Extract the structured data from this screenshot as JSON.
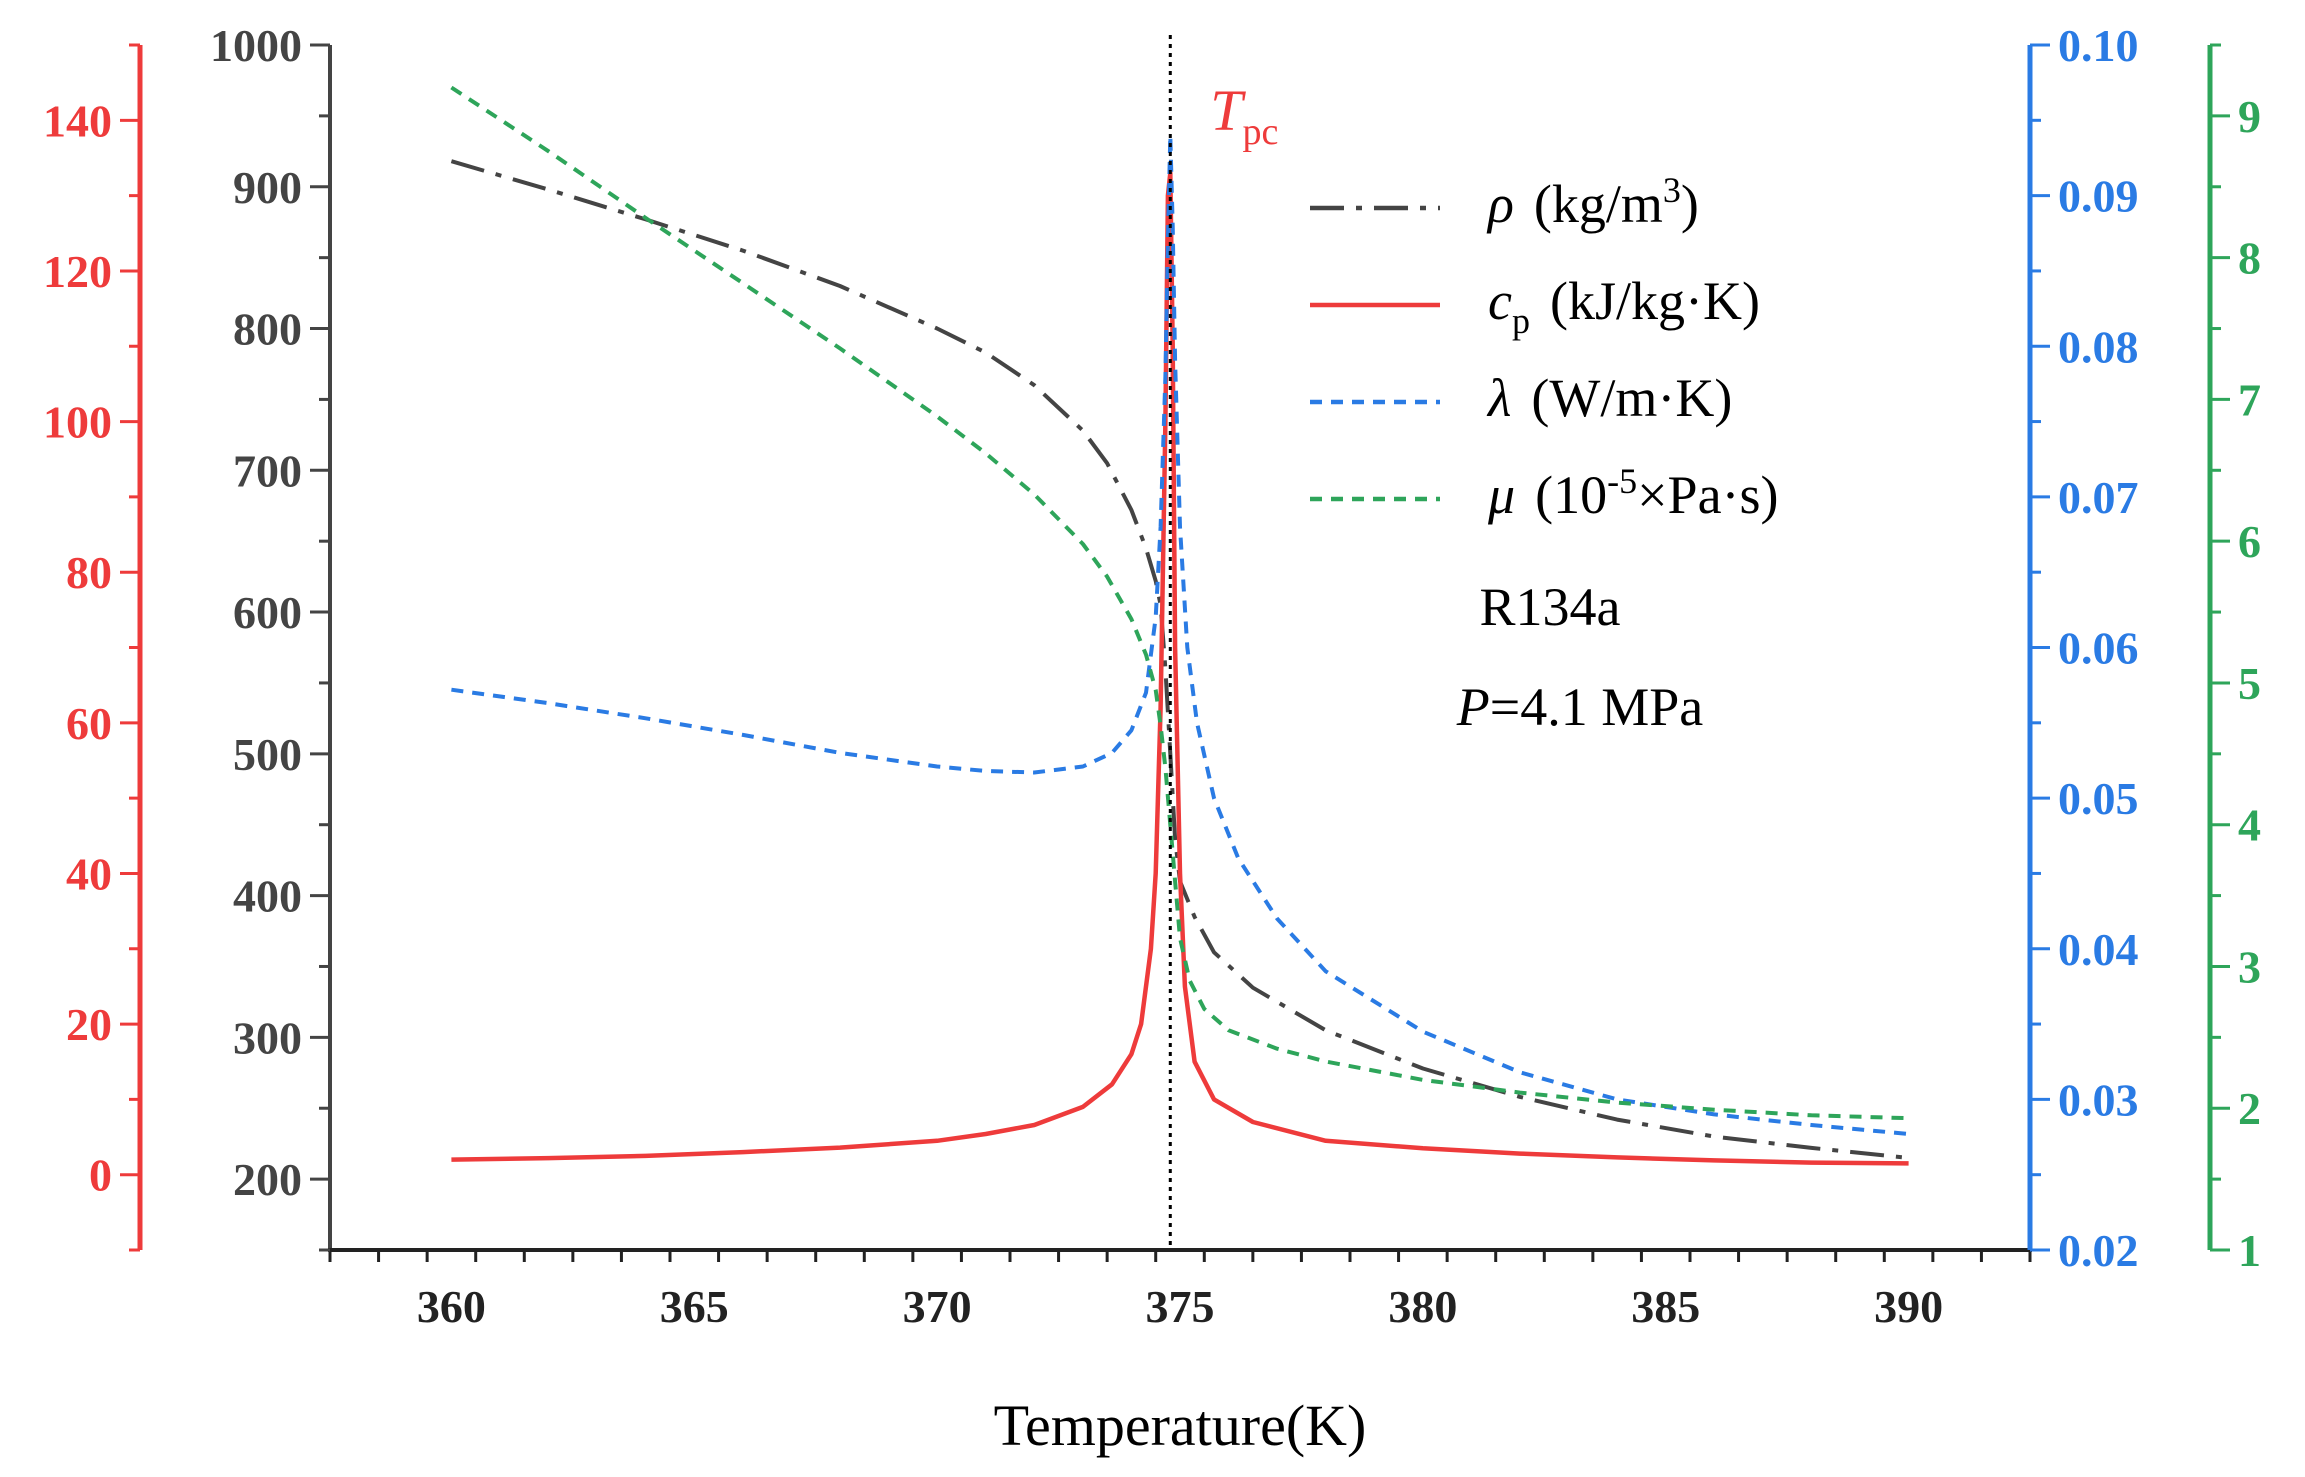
{
  "chart_data": {
    "type": "line",
    "title": "",
    "fluid": "R134a",
    "pressure_label": "=4.1 MPa",
    "pressure_symbol": "P",
    "xlabel": "Temperature(K)",
    "xlim": [
      357.5,
      392.5
    ],
    "xticks": [
      360,
      365,
      370,
      375,
      380,
      385,
      390
    ],
    "tpc": 374.8,
    "tpc_label": {
      "main": "T",
      "sub": "pc"
    },
    "axes": {
      "rho": {
        "ylim": [
          150,
          1000
        ],
        "ticks": [
          200,
          300,
          400,
          500,
          600,
          700,
          800,
          900,
          1000
        ],
        "color": "#444444",
        "decimals": 0
      },
      "cp": {
        "ylim": [
          -10,
          150
        ],
        "ticks": [
          0,
          20,
          40,
          60,
          80,
          100,
          120,
          140
        ],
        "color": "#ee3b3b",
        "decimals": 0
      },
      "lambda": {
        "ylim": [
          0.02,
          0.1
        ],
        "ticks": [
          0.02,
          0.03,
          0.04,
          0.05,
          0.06,
          0.07,
          0.08,
          0.09,
          0.1
        ],
        "color": "#2a7be4",
        "decimals": 2
      },
      "mu": {
        "ylim": [
          1,
          9.5
        ],
        "ticks": [
          1,
          2,
          3,
          4,
          5,
          6,
          7,
          8,
          9
        ],
        "color": "#2ea55a",
        "decimals": 0
      }
    },
    "series": [
      {
        "key": "rho",
        "name": "ρ",
        "unit": "(kg/m3)",
        "color": "#444444",
        "dash": "34,12,6,12",
        "axis": "rho",
        "points": [
          [
            360,
            918
          ],
          [
            362,
            898
          ],
          [
            364,
            877
          ],
          [
            366,
            855
          ],
          [
            368,
            830
          ],
          [
            370,
            800
          ],
          [
            371,
            783
          ],
          [
            372,
            760
          ],
          [
            373,
            728
          ],
          [
            373.5,
            705
          ],
          [
            374,
            672
          ],
          [
            374.3,
            645
          ],
          [
            374.5,
            622
          ],
          [
            374.6,
            605
          ],
          [
            374.7,
            560
          ],
          [
            374.8,
            500
          ],
          [
            374.9,
            440
          ],
          [
            375.0,
            410
          ],
          [
            375.3,
            385
          ],
          [
            375.7,
            360
          ],
          [
            376.5,
            335
          ],
          [
            378,
            305
          ],
          [
            380,
            278
          ],
          [
            382,
            258
          ],
          [
            384,
            242
          ],
          [
            386,
            230
          ],
          [
            388,
            222
          ],
          [
            390,
            215
          ]
        ]
      },
      {
        "key": "cp",
        "name": "c",
        "sub": "p",
        "unit": "(kJ/kg·K)",
        "color": "#ee3b3b",
        "dash": "",
        "axis": "cp",
        "points": [
          [
            360,
            2
          ],
          [
            362,
            2.2
          ],
          [
            364,
            2.5
          ],
          [
            366,
            3
          ],
          [
            368,
            3.6
          ],
          [
            370,
            4.5
          ],
          [
            371,
            5.4
          ],
          [
            372,
            6.6
          ],
          [
            373,
            9
          ],
          [
            373.6,
            12
          ],
          [
            374,
            16
          ],
          [
            374.2,
            20
          ],
          [
            374.4,
            30
          ],
          [
            374.5,
            40
          ],
          [
            374.6,
            62
          ],
          [
            374.7,
            100
          ],
          [
            374.75,
            130
          ],
          [
            374.8,
            133
          ],
          [
            374.85,
            110
          ],
          [
            374.9,
            70
          ],
          [
            375.0,
            40
          ],
          [
            375.1,
            25
          ],
          [
            375.3,
            15
          ],
          [
            375.7,
            10
          ],
          [
            376.5,
            7
          ],
          [
            378,
            4.5
          ],
          [
            380,
            3.5
          ],
          [
            382,
            2.8
          ],
          [
            384,
            2.3
          ],
          [
            386,
            1.9
          ],
          [
            388,
            1.6
          ],
          [
            390,
            1.5
          ]
        ]
      },
      {
        "key": "lambda",
        "name": "λ",
        "unit": "(W/m·K)",
        "color": "#2a7be4",
        "dash": "12,9",
        "axis": "lambda",
        "points": [
          [
            360,
            0.0572
          ],
          [
            362,
            0.0563
          ],
          [
            364,
            0.0553
          ],
          [
            366,
            0.0542
          ],
          [
            368,
            0.053
          ],
          [
            370,
            0.0521
          ],
          [
            371,
            0.0518
          ],
          [
            372,
            0.0517
          ],
          [
            373,
            0.0521
          ],
          [
            373.6,
            0.053
          ],
          [
            374.0,
            0.0545
          ],
          [
            374.3,
            0.057
          ],
          [
            374.5,
            0.062
          ],
          [
            374.6,
            0.068
          ],
          [
            374.7,
            0.078
          ],
          [
            374.75,
            0.087
          ],
          [
            374.8,
            0.094
          ],
          [
            374.85,
            0.088
          ],
          [
            374.9,
            0.079
          ],
          [
            375.0,
            0.068
          ],
          [
            375.15,
            0.06
          ],
          [
            375.35,
            0.055
          ],
          [
            375.7,
            0.05
          ],
          [
            376.2,
            0.046
          ],
          [
            377,
            0.042
          ],
          [
            378,
            0.0385
          ],
          [
            380,
            0.0345
          ],
          [
            382,
            0.0318
          ],
          [
            384,
            0.03
          ],
          [
            386,
            0.029
          ],
          [
            388,
            0.0283
          ],
          [
            390,
            0.0277
          ]
        ]
      },
      {
        "key": "mu",
        "name": "μ",
        "unit": "(10-5×Pa·s)",
        "unit_base": "(10",
        "unit_sup": "-5",
        "unit_tail": "×Pa·s)",
        "color": "#2ea55a",
        "dash": "12,9",
        "axis": "mu",
        "points": [
          [
            360,
            9.2
          ],
          [
            362,
            8.75
          ],
          [
            364,
            8.28
          ],
          [
            366,
            7.82
          ],
          [
            368,
            7.36
          ],
          [
            370,
            6.88
          ],
          [
            371,
            6.62
          ],
          [
            372,
            6.33
          ],
          [
            373,
            5.98
          ],
          [
            373.5,
            5.75
          ],
          [
            374,
            5.45
          ],
          [
            374.3,
            5.2
          ],
          [
            374.5,
            4.95
          ],
          [
            374.6,
            4.7
          ],
          [
            374.7,
            4.4
          ],
          [
            374.8,
            4.0
          ],
          [
            374.9,
            3.6
          ],
          [
            375.0,
            3.2
          ],
          [
            375.2,
            2.9
          ],
          [
            375.5,
            2.7
          ],
          [
            376,
            2.55
          ],
          [
            377,
            2.42
          ],
          [
            378,
            2.33
          ],
          [
            380,
            2.2
          ],
          [
            382,
            2.11
          ],
          [
            384,
            2.04
          ],
          [
            386,
            1.99
          ],
          [
            388,
            1.95
          ],
          [
            390,
            1.93
          ]
        ]
      }
    ]
  }
}
